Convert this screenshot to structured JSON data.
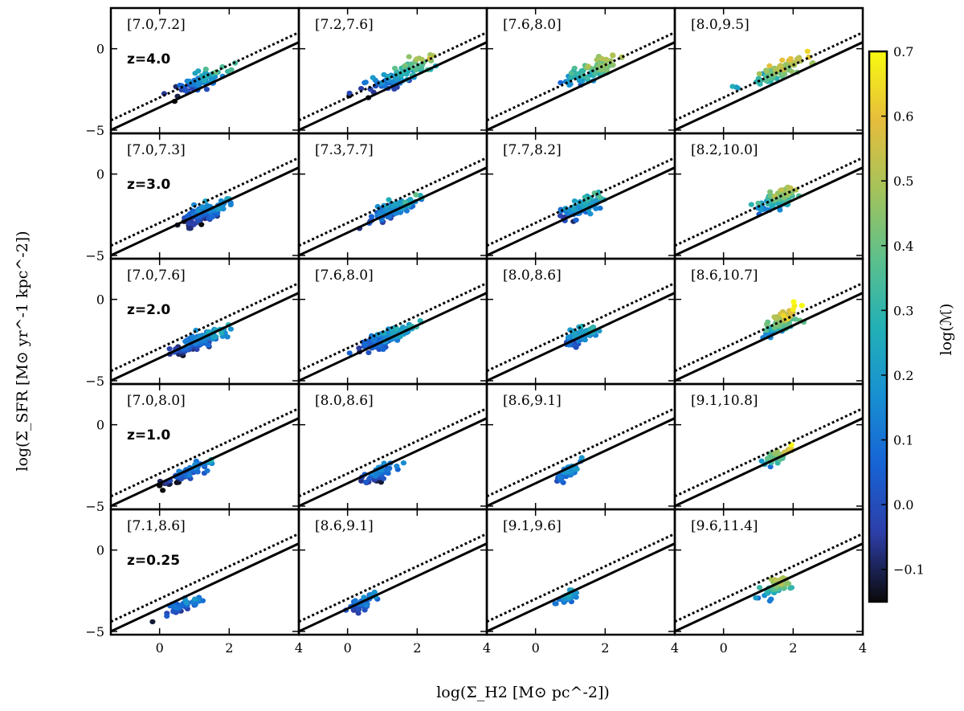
{
  "chart_data": {
    "type": "scatter",
    "layout": "5x4 grid of scatter panels with shared axes and shared colorbar",
    "xlabel": "log(Σ_H2 [M⊙ pc^-2])",
    "ylabel": "log(Σ_SFR [M⊙ yr^-1 kpc^-2])",
    "xlim": [
      -1.4,
      4.0
    ],
    "ylim": [
      -5.2,
      2.5
    ],
    "xticks": [
      0,
      2,
      4
    ],
    "xtick_labels": [
      "0",
      "2",
      "4"
    ],
    "yticks": [
      0,
      -5
    ],
    "ytick_labels": [
      "0",
      "−5"
    ],
    "reference_lines": [
      {
        "style": "solid",
        "slope": 1.0,
        "intercept": -3.6
      },
      {
        "style": "dotted",
        "slope": 1.0,
        "intercept": -3.0
      }
    ],
    "colorbar": {
      "label": "log(ℳ)",
      "range": [
        -0.15,
        0.7
      ],
      "ticks": [
        -0.1,
        0.0,
        0.1,
        0.2,
        0.3,
        0.4,
        0.5,
        0.6,
        0.7
      ],
      "tick_labels": [
        "−0.1",
        "0.0",
        "0.1",
        "0.2",
        "0.3",
        "0.4",
        "0.5",
        "0.6",
        "0.7"
      ],
      "colormap": [
        "#0a0a0a",
        "#2d3ea8",
        "#1763d4",
        "#1890d2",
        "#23b0b5",
        "#5ec08b",
        "#a5c35a",
        "#e6bd3c",
        "#f8fa10"
      ]
    },
    "rows": [
      {
        "z_label": "z=4.0",
        "panels": [
          {
            "bin": "[7.0,7.2]",
            "center": [
              1.2,
              -1.9
            ],
            "spread": [
              0.7,
              0.65
            ],
            "n": 75,
            "mean": 0.15,
            "color_slope": 0.25
          },
          {
            "bin": "[7.2,7.6]",
            "center": [
              1.5,
              -1.6
            ],
            "spread": [
              0.85,
              0.7
            ],
            "n": 95,
            "mean": 0.22,
            "color_slope": 0.25
          },
          {
            "bin": "[7.6,8.0]",
            "center": [
              1.6,
              -1.4
            ],
            "spread": [
              0.75,
              0.65
            ],
            "n": 90,
            "mean": 0.3,
            "color_slope": 0.22
          },
          {
            "bin": "[8.0,9.5]",
            "center": [
              1.6,
              -1.3
            ],
            "spread": [
              0.7,
              0.6
            ],
            "n": 85,
            "mean": 0.42,
            "color_slope": 0.18
          }
        ]
      },
      {
        "z_label": "z=3.0",
        "panels": [
          {
            "bin": "[7.0,7.3]",
            "center": [
              1.3,
              -2.4
            ],
            "spread": [
              0.65,
              0.55
            ],
            "n": 110,
            "mean": 0.05,
            "color_slope": 0.2
          },
          {
            "bin": "[7.3,7.7]",
            "center": [
              1.3,
              -2.2
            ],
            "spread": [
              0.65,
              0.55
            ],
            "n": 120,
            "mean": 0.1,
            "color_slope": 0.2
          },
          {
            "bin": "[7.7,8.2]",
            "center": [
              1.3,
              -2.0
            ],
            "spread": [
              0.6,
              0.55
            ],
            "n": 110,
            "mean": 0.15,
            "color_slope": 0.2
          },
          {
            "bin": "[8.2,10.0]",
            "center": [
              1.6,
              -1.5
            ],
            "spread": [
              0.5,
              0.6
            ],
            "n": 90,
            "mean": 0.33,
            "color_slope": 0.25
          }
        ]
      },
      {
        "z_label": "z=2.0",
        "panels": [
          {
            "bin": "[7.0,7.6]",
            "center": [
              1.1,
              -2.6
            ],
            "spread": [
              0.6,
              0.5
            ],
            "n": 140,
            "mean": 0.07,
            "color_slope": 0.2
          },
          {
            "bin": "[7.6,8.0]",
            "center": [
              1.1,
              -2.4
            ],
            "spread": [
              0.6,
              0.5
            ],
            "n": 130,
            "mean": 0.1,
            "color_slope": 0.18
          },
          {
            "bin": "[8.0,8.6]",
            "center": [
              1.3,
              -2.2
            ],
            "spread": [
              0.45,
              0.5
            ],
            "n": 70,
            "mean": 0.14,
            "color_slope": 0.2
          },
          {
            "bin": "[8.6,10.7]",
            "center": [
              1.7,
              -1.4
            ],
            "spread": [
              0.45,
              0.65
            ],
            "n": 80,
            "mean": 0.4,
            "color_slope": 0.28
          }
        ]
      },
      {
        "z_label": "z=1.0",
        "panels": [
          {
            "bin": "[7.0,8.0]",
            "center": [
              0.8,
              -3.0
            ],
            "spread": [
              0.6,
              0.45
            ],
            "n": 60,
            "mean": 0.02,
            "color_slope": 0.18
          },
          {
            "bin": "[8.0,8.6]",
            "center": [
              0.9,
              -3.0
            ],
            "spread": [
              0.45,
              0.45
            ],
            "n": 55,
            "mean": 0.05,
            "color_slope": 0.15
          },
          {
            "bin": "[8.6,9.1]",
            "center": [
              0.9,
              -2.9
            ],
            "spread": [
              0.35,
              0.45
            ],
            "n": 45,
            "mean": 0.1,
            "color_slope": 0.15
          },
          {
            "bin": "[9.1,10.8]",
            "center": [
              1.5,
              -2.0
            ],
            "spread": [
              0.4,
              0.5
            ],
            "n": 35,
            "mean": 0.38,
            "color_slope": 0.3
          }
        ]
      },
      {
        "z_label": "z=0.25",
        "panels": [
          {
            "bin": "[7.1,8.6]",
            "center": [
              0.6,
              -3.4
            ],
            "spread": [
              0.55,
              0.45
            ],
            "n": 45,
            "mean": 0.05,
            "color_slope": 0.18
          },
          {
            "bin": "[8.6,9.1]",
            "center": [
              0.5,
              -3.2
            ],
            "spread": [
              0.4,
              0.45
            ],
            "n": 40,
            "mean": 0.08,
            "color_slope": 0.15
          },
          {
            "bin": "[9.1,9.6]",
            "center": [
              0.9,
              -2.9
            ],
            "spread": [
              0.3,
              0.35
            ],
            "n": 35,
            "mean": 0.15,
            "color_slope": 0.15
          },
          {
            "bin": "[9.6,11.4]",
            "center": [
              1.5,
              -2.3
            ],
            "spread": [
              0.45,
              0.6
            ],
            "n": 45,
            "mean": 0.35,
            "color_slope": 0.3
          }
        ]
      }
    ]
  }
}
